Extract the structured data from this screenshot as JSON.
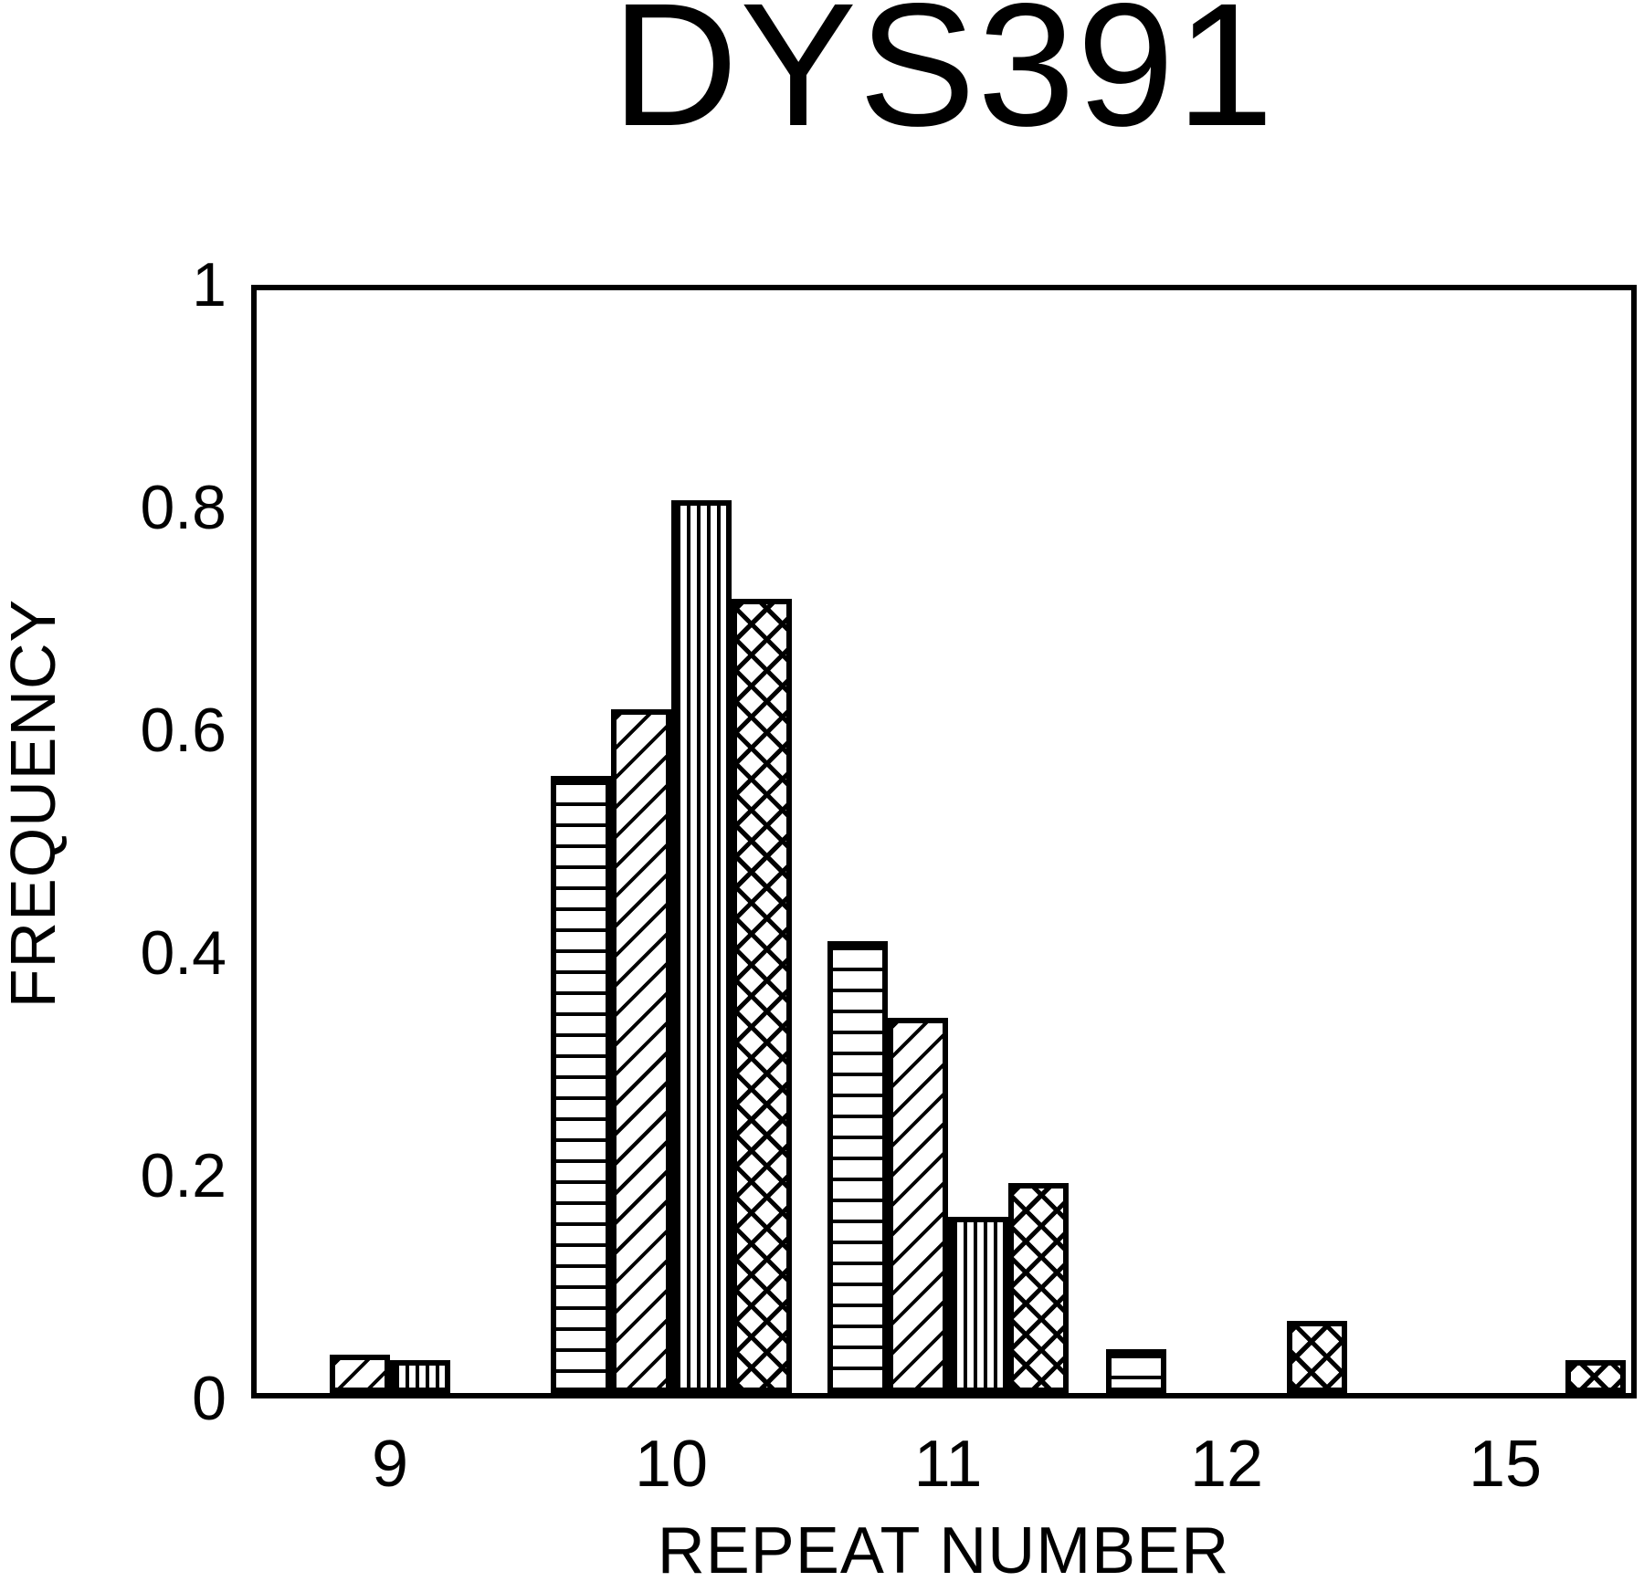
{
  "title": "DYS391",
  "colors": {
    "ink": "#000000",
    "background": "#ffffff"
  },
  "chart_data": {
    "type": "bar",
    "title": "DYS391",
    "xlabel": "REPEAT NUMBER",
    "ylabel": "FREQUENCY",
    "categories": [
      "9",
      "10",
      "11",
      "12",
      "15"
    ],
    "ylim": [
      0,
      1
    ],
    "yticks": [
      "1",
      "0.8",
      "0.6",
      "0.4",
      "0.2",
      "0"
    ],
    "grid": false,
    "legend": "none",
    "bar_fill": "white-with-black-hatching",
    "series": [
      {
        "name": "horizontal-hatch-series",
        "pattern": "horizontal-lines",
        "values": [
          0,
          0.56,
          0.41,
          0.04,
          0
        ]
      },
      {
        "name": "diagonal-hatch-series",
        "pattern": "diagonal-lines",
        "values": [
          0.035,
          0.62,
          0.34,
          0,
          0
        ]
      },
      {
        "name": "vertical-hatch-series",
        "pattern": "vertical-lines",
        "values": [
          0.03,
          0.81,
          0.16,
          0,
          0
        ]
      },
      {
        "name": "crosshatch-series",
        "pattern": "crosshatch",
        "values": [
          0,
          0.72,
          0.19,
          0.065,
          0.03
        ]
      }
    ]
  }
}
